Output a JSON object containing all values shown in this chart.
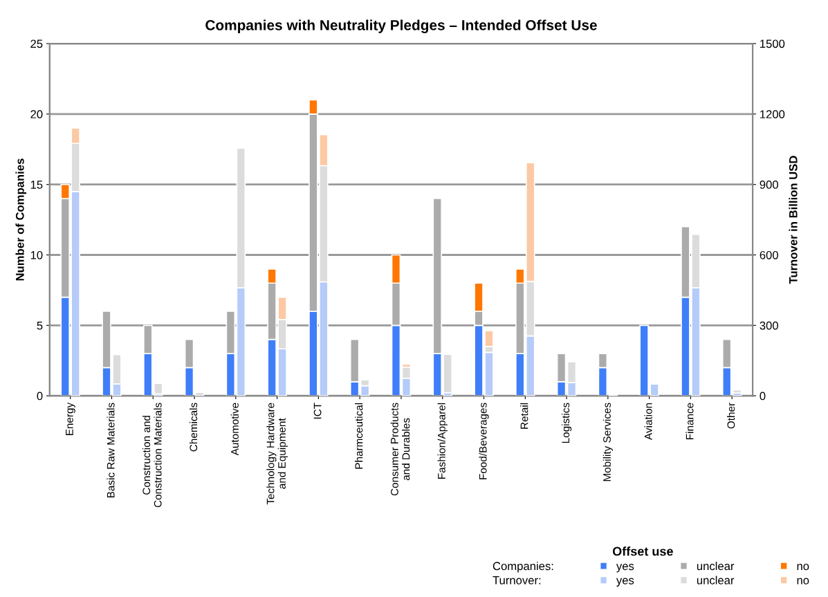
{
  "chart_data": {
    "type": "bar",
    "stacked": true,
    "title": "Companies with Neutrality Pledges – Intended Offset Use",
    "ylabel": "Number of Companies",
    "y2label": "Turnover in Billion USD",
    "legend_title": "Offset use",
    "legend": "bottom right",
    "grid": "y",
    "annotations": [
      "Companies:",
      "Turnover:"
    ],
    "categories": [
      "Energy",
      "Basic Raw Materials",
      "Construction and\nConstruction Materials",
      "Chemicals",
      "Automotive",
      "Technology Hardware\nand Equipment",
      "ICT",
      "Pharmceutical",
      "Consumer Products\nand Durables",
      "Fashion/Apparel",
      "Food/Beverages",
      "Retail",
      "Logistics",
      "Mobility Services",
      "Aviation",
      "Finance",
      "Other"
    ],
    "ylim": [
      0,
      25
    ],
    "yticks": [
      0,
      5,
      10,
      15,
      20,
      25
    ],
    "y2lim": [
      0,
      1500
    ],
    "y2ticks": [
      0,
      300,
      600,
      900,
      1200,
      1500
    ],
    "series": [
      {
        "name": "yes",
        "color": "#3f7ef9",
        "values": [
          7,
          2,
          3,
          2,
          3,
          4,
          6,
          1,
          5,
          3,
          5,
          3,
          1,
          2,
          5,
          7,
          2
        ]
      },
      {
        "name": "unclear",
        "color": "#ababab",
        "values": [
          7,
          4,
          2,
          2,
          3,
          4,
          14,
          3,
          3,
          11,
          1,
          5,
          2,
          1,
          0,
          5,
          2
        ]
      },
      {
        "name": "no",
        "color": "#ff7700",
        "values": [
          1,
          0,
          0,
          0,
          0,
          1,
          1,
          0,
          2,
          0,
          2,
          1,
          0,
          0,
          0,
          0,
          0
        ]
      },
      {
        "name": "yes",
        "color": "#b5cbf9",
        "axis": "y2",
        "values": [
          870,
          50,
          8,
          null,
          460,
          200,
          485,
          43,
          75,
          13,
          185,
          255,
          57,
          0,
          50,
          460,
          12
        ]
      },
      {
        "name": "unclear",
        "color": "#dcdcdc",
        "axis": "y2",
        "values": [
          205,
          125,
          45,
          15,
          595,
          125,
          495,
          25,
          47,
          164,
          25,
          232,
          88,
          5,
          0,
          228,
          13
        ]
      },
      {
        "name": "no",
        "color": "#fcc9a4",
        "axis": "y2",
        "values": [
          65,
          0,
          0,
          0,
          0,
          95,
          132,
          0,
          13,
          0,
          68,
          506,
          0,
          0,
          0,
          0,
          0
        ]
      }
    ]
  }
}
